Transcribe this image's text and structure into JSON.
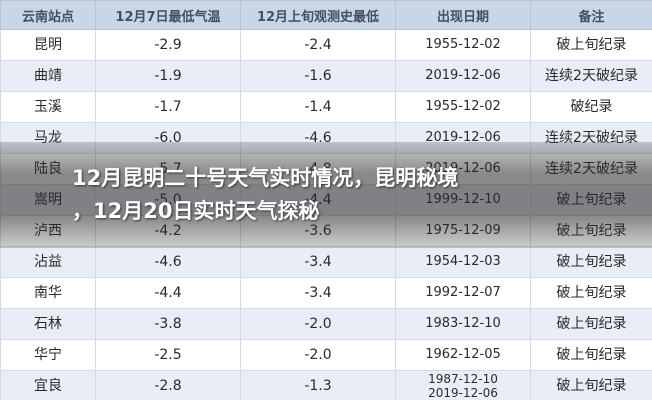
{
  "table": {
    "headers": [
      "云南站点",
      "12月7日最低气温",
      "12月上旬观测史最低",
      "出现日期",
      "备注"
    ],
    "rows": [
      [
        "昆明",
        "-2.9",
        "-2.4",
        "1955-12-02",
        "破上旬纪录"
      ],
      [
        "曲靖",
        "-1.9",
        "-1.6",
        "2019-12-06",
        "连续2天破纪录"
      ],
      [
        "玉溪",
        "-1.7",
        "-1.4",
        "1955-12-02",
        "破纪录"
      ],
      [
        "马龙",
        "-6.0",
        "-4.6",
        "2019-12-06",
        "连续2天破纪录"
      ],
      [
        "陆良",
        "-5.7",
        "-4.8",
        "2019-12-06",
        "连续2天破纪录"
      ],
      [
        "嵩明",
        "-5.0",
        "-4.4",
        "1999-12-10",
        "破上旬纪录"
      ],
      [
        "泸西",
        "-4.2",
        "-3.6",
        "1975-12-09",
        "破上旬纪录"
      ],
      [
        "沾益",
        "-4.6",
        "-3.4",
        "1954-12-03",
        "破上旬纪录"
      ],
      [
        "南华",
        "-4.4",
        "-3.4",
        "1992-12-07",
        "破上旬纪录"
      ],
      [
        "石林",
        "-3.8",
        "-2.0",
        "1983-12-10",
        "破上旬纪录"
      ],
      [
        "华宁",
        "-2.5",
        "-2.0",
        "1962-12-05",
        "破上旬纪录"
      ],
      [
        "宜良",
        "-2.8",
        "-1.3",
        "1987-12-10\n2019-12-06",
        "破上旬纪录"
      ]
    ]
  },
  "overlay": {
    "lines": [
      "12月昆明二十号天气实时情况，昆明秘境",
      "，12月20日实时天气探秘"
    ]
  }
}
